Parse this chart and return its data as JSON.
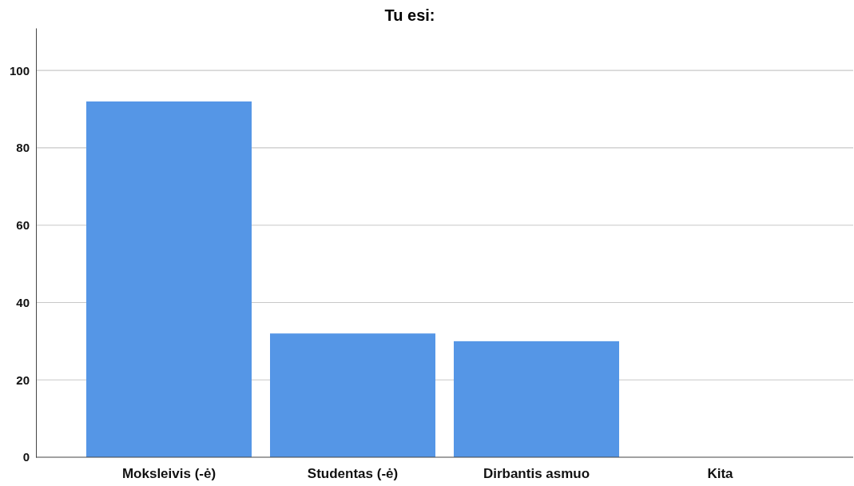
{
  "chart_data": {
    "type": "bar",
    "title": "Tu esi:",
    "categories": [
      "Moksleivis (-ė)",
      "Studentas (-ė)",
      "Dirbantis asmuo",
      "Kita"
    ],
    "values": [
      92,
      32,
      30,
      0
    ],
    "color": "#5596e6",
    "ylim": [
      0,
      111
    ],
    "yticks": [
      0,
      20,
      40,
      60,
      80,
      100
    ],
    "grid": "y"
  }
}
